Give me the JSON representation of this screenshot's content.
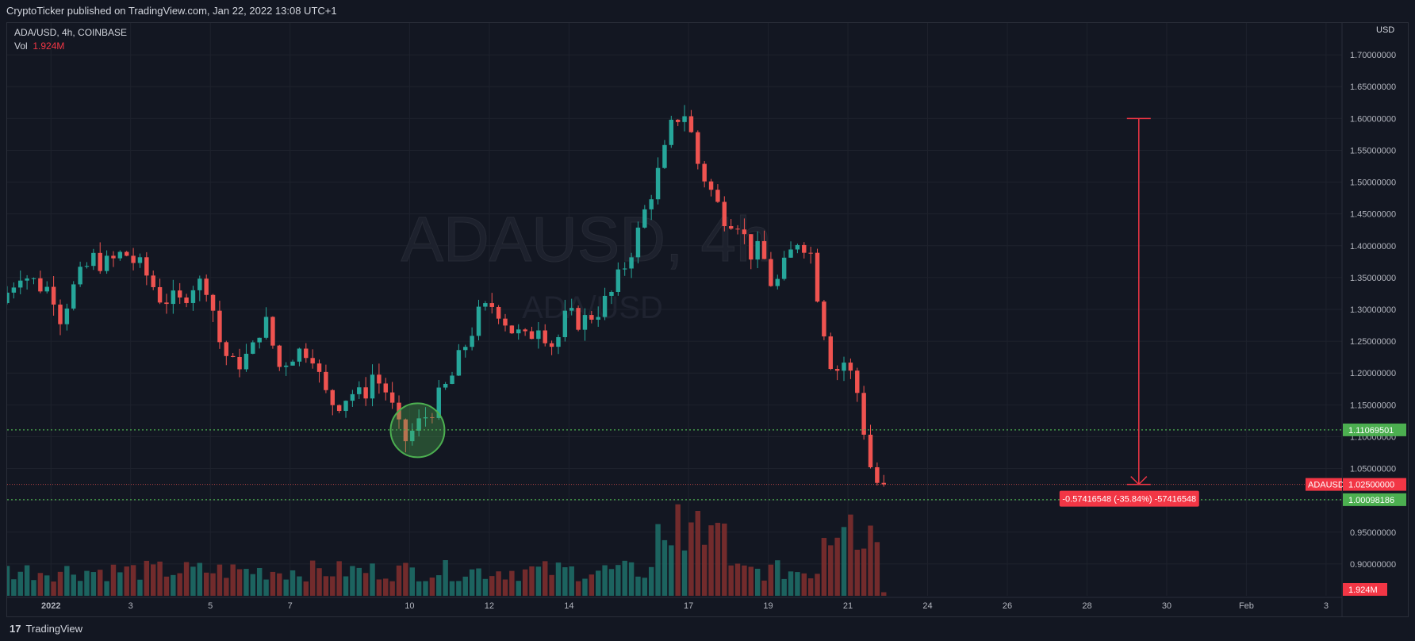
{
  "header": {
    "published": "CryptoTicker published on TradingView.com, Jan 22, 2022 13:08 UTC+1"
  },
  "legend": {
    "symbol": "ADA/USD, 4h, COINBASE",
    "vol_label": "Vol",
    "vol_value": "1.924M"
  },
  "watermark": {
    "main": "ADAUSD, 4h",
    "sub": "ADA/USD"
  },
  "footer": {
    "brand": "TradingView",
    "logo_glyph": "17"
  },
  "colors": {
    "up": "#26a69a",
    "down": "#ef5350",
    "vol_up": "#1e6b66",
    "vol_down": "#7d2e2e",
    "bg": "#131722",
    "grid": "#1e222d",
    "level": "#4caf50",
    "measure": "#f23645"
  },
  "chart_data": {
    "type": "candlestick",
    "currency": "USD",
    "y_axis": {
      "min": 0.85,
      "max": 1.75,
      "ticks": [
        0.9,
        0.95,
        1.0,
        1.05,
        1.1,
        1.15,
        1.2,
        1.25,
        1.3,
        1.35,
        1.4,
        1.45,
        1.5,
        1.55,
        1.6,
        1.65,
        1.7
      ],
      "tick_labels": [
        "0.90000000",
        "0.95000000",
        "1.00000000",
        "1.05000000",
        "1.10000000",
        "1.15000000",
        "1.20000000",
        "1.25000000",
        "1.30000000",
        "1.35000000",
        "1.40000000",
        "1.45000000",
        "1.50000000",
        "1.55000000",
        "1.60000000",
        "1.65000000",
        "1.70000000"
      ]
    },
    "x_axis": {
      "labels": [
        {
          "text": "2022",
          "day": 1.6,
          "bold": true
        },
        {
          "text": "3",
          "day": 3.6
        },
        {
          "text": "5",
          "day": 5.6
        },
        {
          "text": "7",
          "day": 7.6
        },
        {
          "text": "10",
          "day": 10.6
        },
        {
          "text": "12",
          "day": 12.6
        },
        {
          "text": "14",
          "day": 14.6
        },
        {
          "text": "17",
          "day": 17.6
        },
        {
          "text": "19",
          "day": 19.6
        },
        {
          "text": "21",
          "day": 21.6
        },
        {
          "text": "24",
          "day": 23.6
        },
        {
          "text": "26",
          "day": 25.6
        },
        {
          "text": "28",
          "day": 27.6
        },
        {
          "text": "30",
          "day": 29.6
        },
        {
          "text": "Feb",
          "day": 31.6
        },
        {
          "text": "3",
          "day": 33.6
        }
      ],
      "start_day": 0.5,
      "end_day": 34.0
    },
    "price_path": [
      [
        0.5,
        1.31
      ],
      [
        1.0,
        1.36
      ],
      [
        1.4,
        1.34
      ],
      [
        1.8,
        1.33
      ],
      [
        2.0,
        1.29
      ],
      [
        2.3,
        1.33
      ],
      [
        2.8,
        1.38
      ],
      [
        3.2,
        1.37
      ],
      [
        3.6,
        1.39
      ],
      [
        4.1,
        1.36
      ],
      [
        4.5,
        1.32
      ],
      [
        5.0,
        1.31
      ],
      [
        5.3,
        1.34
      ],
      [
        5.7,
        1.34
      ],
      [
        6.0,
        1.25
      ],
      [
        6.3,
        1.21
      ],
      [
        6.8,
        1.23
      ],
      [
        7.1,
        1.29
      ],
      [
        7.5,
        1.21
      ],
      [
        7.8,
        1.23
      ],
      [
        8.3,
        1.24
      ],
      [
        8.6,
        1.17
      ],
      [
        8.9,
        1.15
      ],
      [
        9.3,
        1.17
      ],
      [
        9.6,
        1.16
      ],
      [
        9.8,
        1.2
      ],
      [
        10.2,
        1.17
      ],
      [
        10.6,
        1.09
      ],
      [
        11.0,
        1.12
      ],
      [
        11.4,
        1.15
      ],
      [
        11.8,
        1.19
      ],
      [
        12.2,
        1.25
      ],
      [
        12.5,
        1.29
      ],
      [
        12.9,
        1.31
      ],
      [
        13.3,
        1.27
      ],
      [
        13.7,
        1.25
      ],
      [
        14.0,
        1.28
      ],
      [
        14.4,
        1.24
      ],
      [
        14.7,
        1.29
      ],
      [
        15.1,
        1.28
      ],
      [
        15.5,
        1.3
      ],
      [
        15.8,
        1.32
      ],
      [
        16.1,
        1.36
      ],
      [
        16.5,
        1.42
      ],
      [
        16.8,
        1.48
      ],
      [
        17.1,
        1.53
      ],
      [
        17.4,
        1.6
      ],
      [
        17.7,
        1.61
      ],
      [
        18.0,
        1.53
      ],
      [
        18.3,
        1.49
      ],
      [
        18.6,
        1.45
      ],
      [
        19.0,
        1.44
      ],
      [
        19.3,
        1.39
      ],
      [
        19.6,
        1.39
      ],
      [
        19.9,
        1.33
      ],
      [
        20.2,
        1.37
      ],
      [
        20.5,
        1.41
      ],
      [
        20.8,
        1.4
      ],
      [
        21.1,
        1.29
      ],
      [
        21.4,
        1.2
      ],
      [
        21.7,
        1.22
      ],
      [
        22.0,
        1.17
      ],
      [
        22.2,
        1.1
      ],
      [
        22.4,
        1.03
      ],
      [
        22.6,
        1.025
      ]
    ],
    "last_price": 1.025,
    "price_label": {
      "symbol": "ADAUSD",
      "value": "1.02500000"
    },
    "horizontal_levels": [
      {
        "value": 1.11069501,
        "label": "1.11069501"
      },
      {
        "value": 1.00098186,
        "label": "1.00098186"
      }
    ],
    "volume_label": "1.924M",
    "measurement": {
      "from_price": 1.6,
      "to_price": 1.025,
      "day": 28.9,
      "label": "-0.57416548 (-35.84%) -57416548"
    },
    "highlight_circle": {
      "day": 10.8,
      "price": 1.11
    }
  }
}
